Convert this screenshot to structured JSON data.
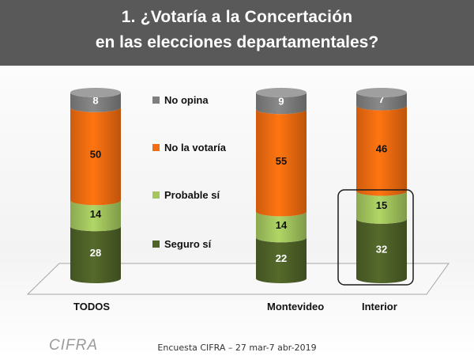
{
  "header": {
    "line1": "1.   ¿Votaría a la Concertación",
    "line2": "en las elecciones departamentales?"
  },
  "footer": {
    "source": "Encuesta CIFRA – 27 mar-7 abr-2019"
  },
  "logo": {
    "text": "CIFRA"
  },
  "colors": {
    "seguro": "#4f6228",
    "probable": "#a3c65e",
    "no_votaria": "#f26c10",
    "no_opina": "#7f7f7f",
    "highlight": "#1a1a1a"
  },
  "chart_data": {
    "type": "bar",
    "stacked": true,
    "categories": [
      "TODOS",
      "Montevideo",
      "Interior"
    ],
    "series": [
      {
        "name": "Seguro sí",
        "key": "seguro",
        "values": [
          28,
          22,
          32
        ]
      },
      {
        "name": "Probable sí",
        "key": "probable",
        "values": [
          14,
          14,
          15
        ]
      },
      {
        "name": "No la votaría",
        "key": "no_votaria",
        "values": [
          50,
          55,
          46
        ]
      },
      {
        "name": "No opina",
        "key": "no_opina",
        "values": [
          8,
          9,
          7
        ]
      }
    ],
    "legend_order": [
      "No opina",
      "No la votaría",
      "Probable sí",
      "Seguro sí"
    ],
    "highlight": {
      "category": "Interior",
      "series": [
        "Seguro sí",
        "Probable sí"
      ]
    },
    "ylim": [
      0,
      100
    ]
  }
}
